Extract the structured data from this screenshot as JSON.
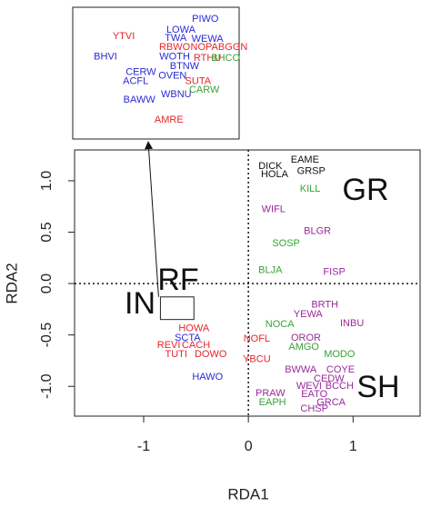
{
  "chart_data": {
    "type": "text-scatter",
    "x_label": "RDA1",
    "y_label": "RDA2",
    "xlim": [
      -1.66,
      1.64
    ],
    "ylim": [
      -1.29,
      1.3
    ],
    "xticks": [
      -1,
      0,
      1
    ],
    "yticks": [
      {
        "value": -1,
        "label": "-1.0"
      },
      -0.5,
      {
        "value": 0,
        "label": "0.0"
      },
      0.5,
      {
        "value": 1,
        "label": "1.0"
      }
    ],
    "reference_lines": {
      "x": 0,
      "y": 0
    },
    "annotations": [
      "GR",
      "SH",
      "RF",
      "IN"
    ],
    "groups": [
      {
        "color": "#111111",
        "labels": [
          "DICK",
          "EAME",
          "HOLA",
          "GRSP"
        ],
        "x": [
          0.21,
          0.54,
          0.25,
          0.6
        ],
        "y": [
          1.14,
          1.2,
          1.06,
          1.09
        ]
      },
      {
        "color": "#36a336",
        "labels": [
          "KILL",
          "SOSP",
          "BLJA",
          "NOCA",
          "AMGO",
          "MODO",
          "EAPH"
        ],
        "x": [
          0.59,
          0.36,
          0.21,
          0.3,
          0.53,
          0.87,
          0.23
        ],
        "y": [
          0.92,
          0.39,
          0.13,
          -0.4,
          -0.62,
          -0.69,
          -1.16
        ]
      },
      {
        "color": "#9a2a9a",
        "labels": [
          "WIFL",
          "BLGR",
          "FISP",
          "BRTH",
          "YEWA",
          "INBU",
          "OROR",
          "BWWA",
          "COYE",
          "CEDW",
          "WEVI",
          "BCCH",
          "EATO",
          "GRCA",
          "PRAW",
          "CHSP"
        ],
        "x": [
          0.24,
          0.66,
          0.82,
          0.73,
          0.57,
          0.99,
          0.55,
          0.5,
          0.88,
          0.77,
          0.58,
          0.87,
          0.63,
          0.79,
          0.21,
          0.63
        ],
        "y": [
          0.72,
          0.51,
          0.11,
          -0.21,
          -0.3,
          -0.39,
          -0.53,
          -0.84,
          -0.84,
          -0.93,
          -1.0,
          -1.0,
          -1.08,
          -1.16,
          -1.07,
          -1.22
        ]
      },
      {
        "color": "#e5262a",
        "labels": [
          "NOFL",
          "YBCU",
          "HOWA",
          "REVI",
          "CACH",
          "TUTI",
          "DOWO"
        ],
        "x": [
          0.08,
          0.08,
          -0.52,
          -0.76,
          -0.5,
          -0.69,
          -0.36
        ],
        "y": [
          -0.54,
          -0.74,
          -0.44,
          -0.6,
          -0.6,
          -0.69,
          -0.69
        ]
      },
      {
        "color": "#2a2ad6",
        "labels": [
          "SCTA",
          "HAWO"
        ],
        "x": [
          -0.58,
          -0.39
        ],
        "y": [
          -0.53,
          -0.91
        ]
      }
    ],
    "inset": {
      "xlim": [
        -0.84,
        -0.52
      ],
      "ylim": [
        -0.35,
        -0.13
      ],
      "groups": [
        {
          "color": "#2a2ad6",
          "labels": [
            "PIWO",
            "LOWA",
            "TWA",
            "WEWA",
            "BHVI",
            "WOTH",
            "BTNW",
            "CERW",
            "OVEN",
            "ACFL",
            "WBNU",
            "BAWW"
          ],
          "x": [
            -0.585,
            -0.632,
            -0.642,
            -0.581,
            -0.777,
            -0.644,
            -0.625,
            -0.709,
            -0.648,
            -0.719,
            -0.641,
            -0.712
          ],
          "y": [
            -0.15,
            -0.168,
            -0.182,
            -0.183,
            -0.213,
            -0.213,
            -0.229,
            -0.239,
            -0.245,
            -0.254,
            -0.276,
            -0.285
          ]
        },
        {
          "color": "#e5262a",
          "labels": [
            "YTVI",
            "RBWO",
            "NOPA",
            "BGGN",
            "RTHU",
            "SUTA",
            "AMRE"
          ],
          "x": [
            -0.742,
            -0.644,
            -0.587,
            -0.532,
            -0.581,
            -0.599,
            -0.655
          ],
          "y": [
            -0.179,
            -0.197,
            -0.197,
            -0.197,
            -0.215,
            -0.254,
            -0.318
          ]
        },
        {
          "color": "#36a336",
          "labels": [
            "BHCO",
            "CARW"
          ],
          "x": [
            -0.546,
            -0.587
          ],
          "y": [
            -0.215,
            -0.268
          ]
        }
      ]
    }
  }
}
